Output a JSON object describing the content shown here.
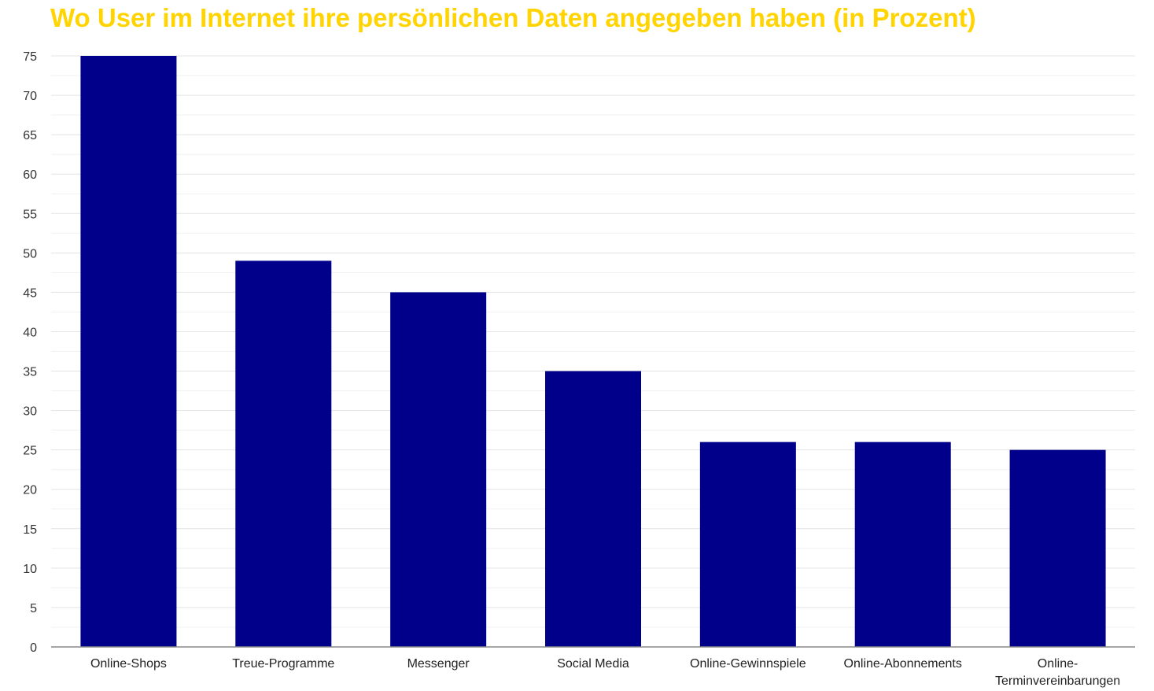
{
  "chart_data": {
    "type": "bar",
    "title": "Wo User im Internet ihre persönlichen Daten angegeben haben (in Prozent)",
    "xlabel": "",
    "ylabel": "",
    "categories": [
      "Online-Shops",
      "Treue-Programme",
      "Messenger",
      "Social Media",
      "Online-Gewinnspiele",
      "Online-Abonnements",
      "Online-\nTerminvereinbarungen"
    ],
    "values": [
      75,
      49,
      45,
      35,
      26,
      26,
      25
    ],
    "ylim": [
      0,
      75
    ],
    "yticks": [
      0,
      5,
      10,
      15,
      20,
      25,
      30,
      35,
      40,
      45,
      50,
      55,
      60,
      65,
      70,
      75
    ],
    "grid": true,
    "colors": {
      "bar": "#00008B",
      "title": "#FFD400",
      "grid": "#E3E3E3",
      "minor_grid": "#F1F1F1"
    }
  }
}
